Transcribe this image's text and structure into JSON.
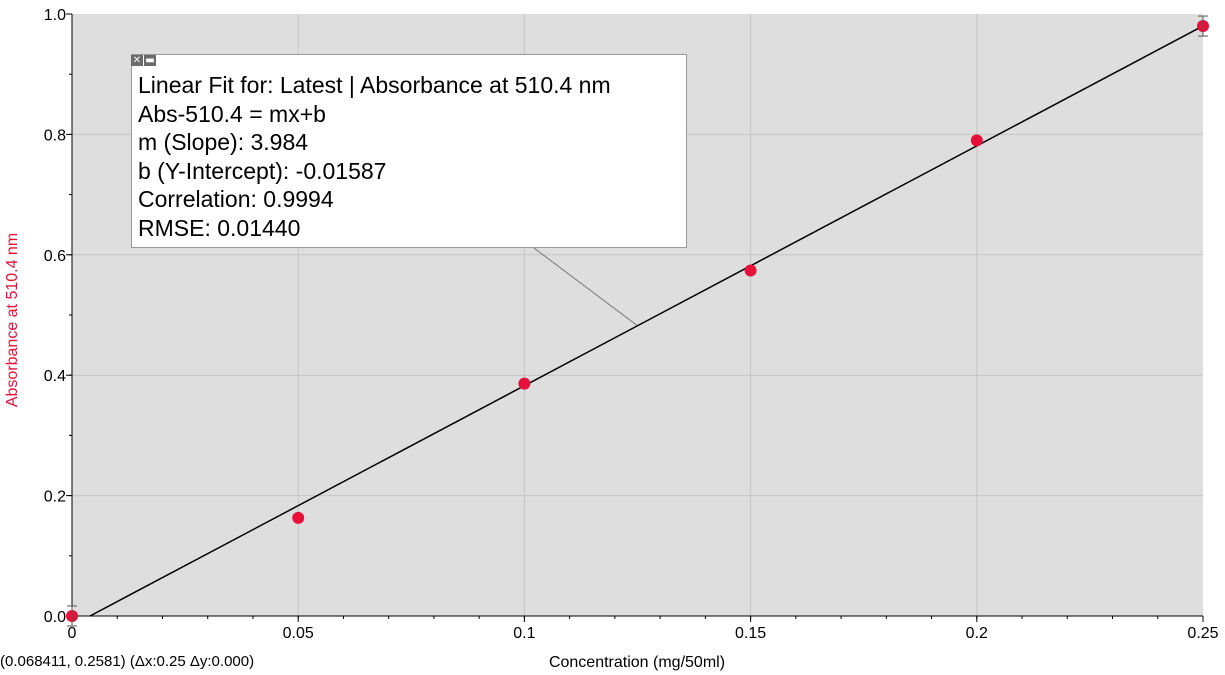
{
  "chart_data": {
    "type": "scatter",
    "xlabel": "Concentration (mg/50ml)",
    "ylabel": "Absorbance at 510.4 nm",
    "xlim": [
      0,
      0.25
    ],
    "ylim": [
      0,
      1.0
    ],
    "x_ticks": [
      "0",
      "0.05",
      "0.1",
      "0.15",
      "0.2",
      "0.25"
    ],
    "y_ticks": [
      "0.0",
      "0.2",
      "0.4",
      "0.6",
      "0.8",
      "1.0"
    ],
    "grid": true,
    "series": [
      {
        "x": [
          0,
          0.05,
          0.1,
          0.15,
          0.2,
          0.25
        ],
        "y": [
          0.0,
          0.163,
          0.386,
          0.574,
          0.79,
          0.98
        ]
      }
    ],
    "fit": {
      "slope": 3.984,
      "intercept": -0.01587
    },
    "fit_box": {
      "lines": [
        "Linear Fit for: Latest | Absorbance at 510.4 nm",
        "Abs-510.4 = mx+b",
        "m (Slope): 3.984",
        "b (Y-Intercept): -0.01587",
        "Correlation: 0.9994",
        "RMSE: 0.01440"
      ],
      "anchor_x": 0.125
    },
    "readout": "(0.068411, 0.2581) (Δx:0.25 Δy:0.000)"
  },
  "colors": {
    "plot_bg": "#dedede",
    "grid": "#c6c6c6",
    "points": "#e8103a",
    "fit_line": "#000000",
    "ylabel": "#e8103a"
  },
  "icons": [
    "close-icon",
    "minimize-icon"
  ]
}
